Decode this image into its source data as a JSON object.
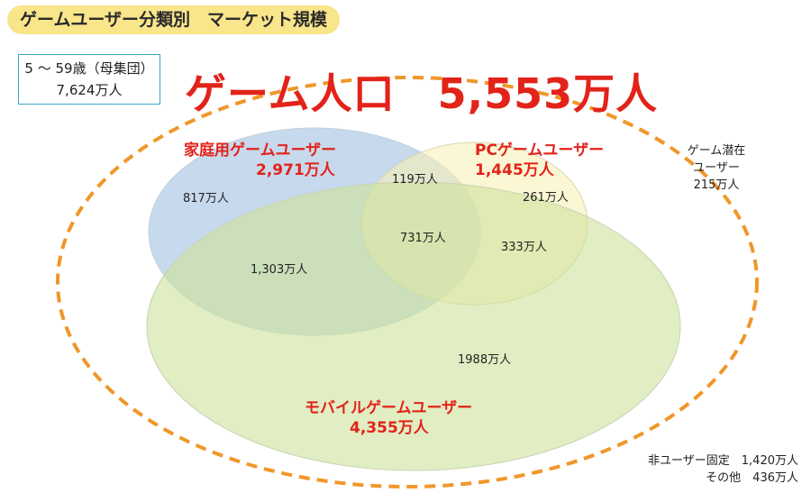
{
  "title": "ゲームユーザー分類別　マーケット規模",
  "population_box": {
    "line1": "5 〜 59歳（母集団）",
    "line2": "7,624万人"
  },
  "headline": "ゲーム人口　5,553万人",
  "sets": {
    "home": {
      "name": "家庭用ゲームユーザー",
      "value": "2,971万人",
      "color": "#b9cfe8"
    },
    "pc": {
      "name": "PCゲームユーザー",
      "value": "1,445万人",
      "color": "#f8f0b8"
    },
    "mobile": {
      "name": "モバイルゲームユーザー",
      "value": "4,355万人",
      "color": "#cfe29d"
    }
  },
  "regions": {
    "home_only": "817万人",
    "home_pc": "119万人",
    "pc_only": "261万人",
    "all_three": "731万人",
    "pc_mobile": "333万人",
    "home_mobile": "1,303万人",
    "mobile_only": "1988万人"
  },
  "potential": {
    "line1": "ゲーム潜在",
    "line2": "ユーザー",
    "line3": "215万人"
  },
  "footer": {
    "line1": "非ユーザー固定　1,420万人",
    "line2": "その他　436万人"
  },
  "colors": {
    "accent_red": "#e2231a",
    "dashed_outline": "#f0972a",
    "title_bg": "#f9e58a",
    "box_border": "#3aa7c9"
  }
}
